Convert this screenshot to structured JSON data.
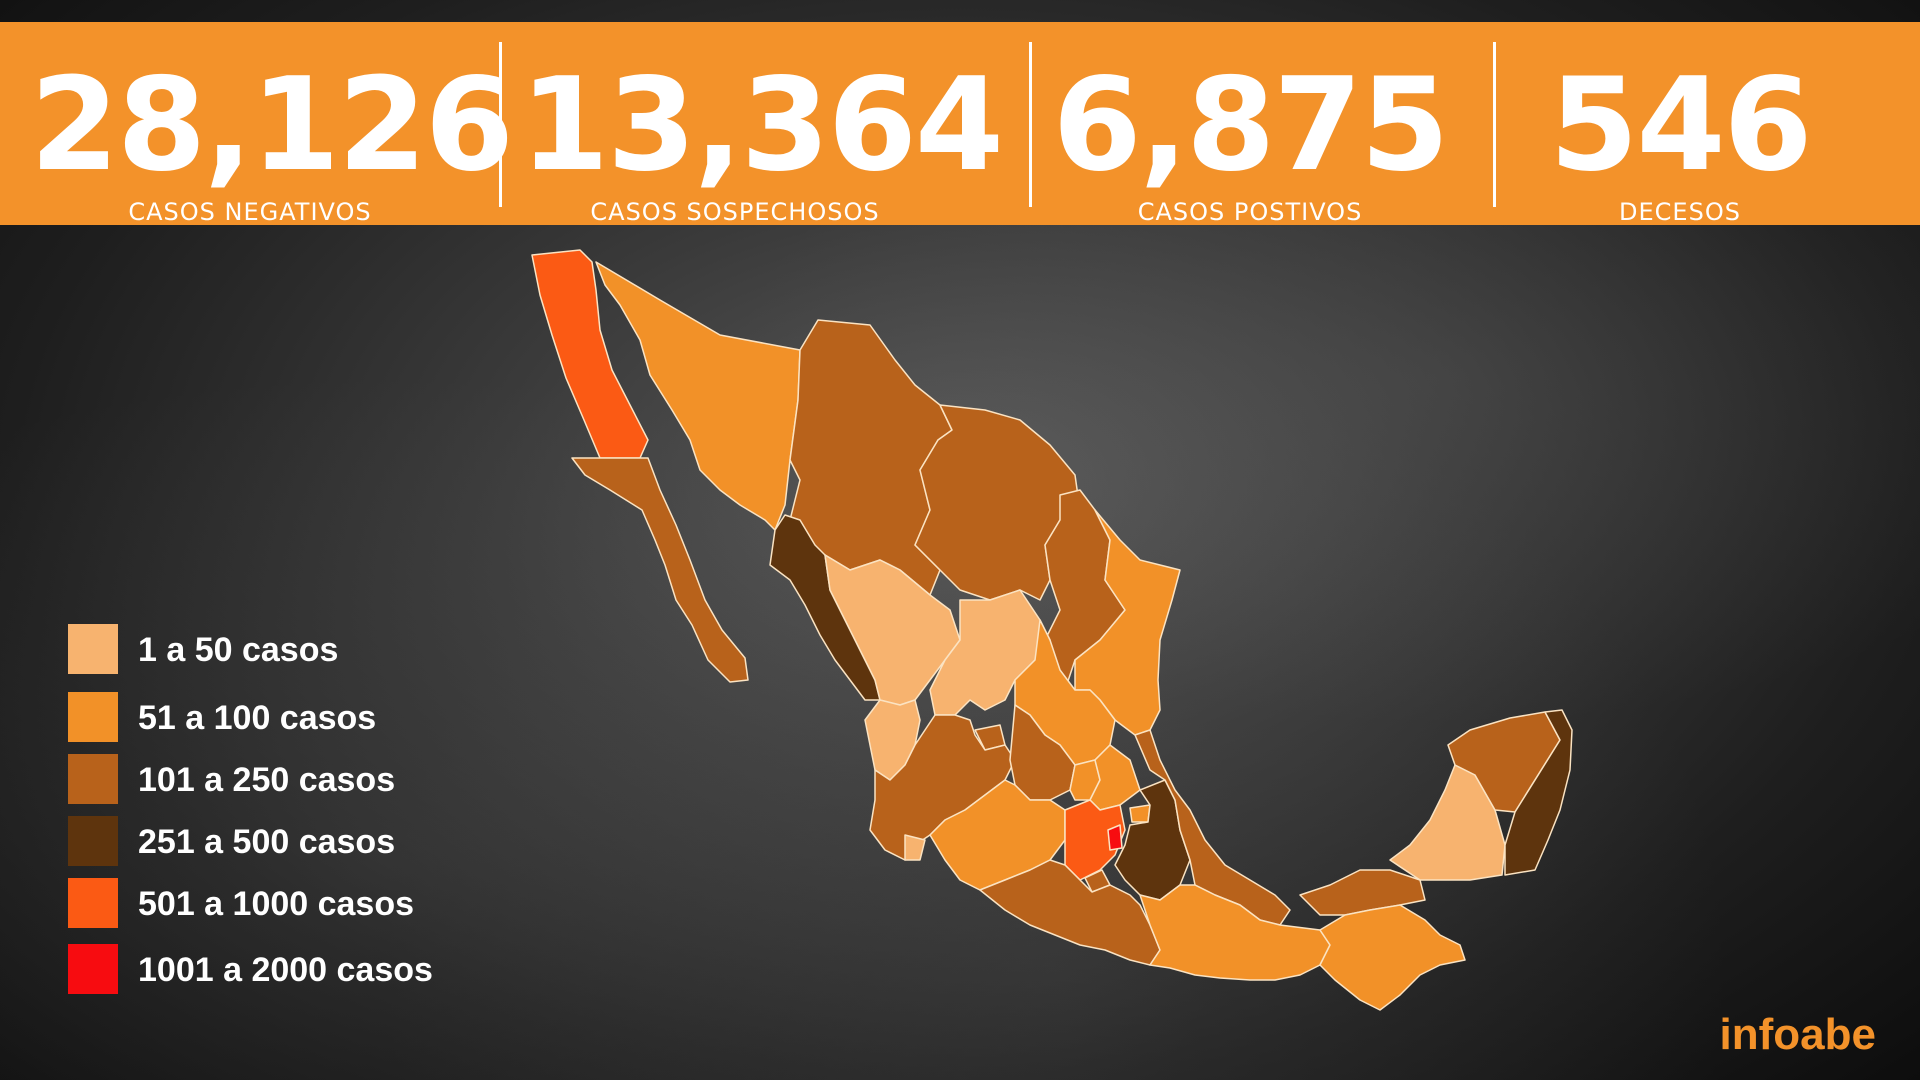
{
  "stats": [
    {
      "value": "28,126",
      "label": "CASOS NEGATIVOS"
    },
    {
      "value": "13,364",
      "label": "CASOS SOSPECHOSOS"
    },
    {
      "value": "6,875",
      "label": "CASOS POSTIVOS"
    },
    {
      "value": "546",
      "label": "DECESOS"
    }
  ],
  "legend": [
    {
      "label": "1 a 50 casos",
      "color": "#f7b36f"
    },
    {
      "label": "51 a 100 casos",
      "color": "#f29128"
    },
    {
      "label": "101 a 250 casos",
      "color": "#b8621b"
    },
    {
      "label": "251 a 500 casos",
      "color": "#5e340d"
    },
    {
      "label": "501 a 1000 casos",
      "color": "#fb5a14"
    },
    {
      "label": "1001 a 2000 casos",
      "color": "#f70c10"
    }
  ],
  "brand": {
    "name": "infoabe",
    "color": "#f3922a"
  },
  "colors": {
    "banner": "#f3922a",
    "background": "#2a2a2a"
  }
}
